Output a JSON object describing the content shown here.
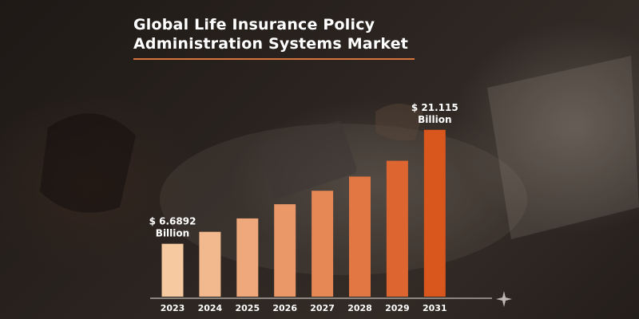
{
  "title_lines": [
    "Global Life Insurance Policy",
    "Administration Systems Market"
  ],
  "colors": {
    "accent": "#d8743e",
    "bar_light": "#f7c9a1",
    "bar_dark": "#d9561d",
    "text": "#ffffff"
  },
  "chart_data": {
    "type": "bar",
    "categories": [
      "2023",
      "2024",
      "2025",
      "2026",
      "2027",
      "2028",
      "2029",
      "2031"
    ],
    "values": [
      6.6892,
      8.2,
      9.9,
      11.7,
      13.4,
      15.2,
      17.2,
      21.115
    ],
    "unit": "Billion",
    "ylim": [
      0,
      22
    ],
    "grid": false,
    "legend": "none",
    "annotations": [
      {
        "category": "2023",
        "lines": [
          "$ 6.6892",
          "Billion"
        ]
      },
      {
        "category": "2031",
        "lines": [
          "$ 21.115",
          "Billion"
        ]
      }
    ]
  }
}
